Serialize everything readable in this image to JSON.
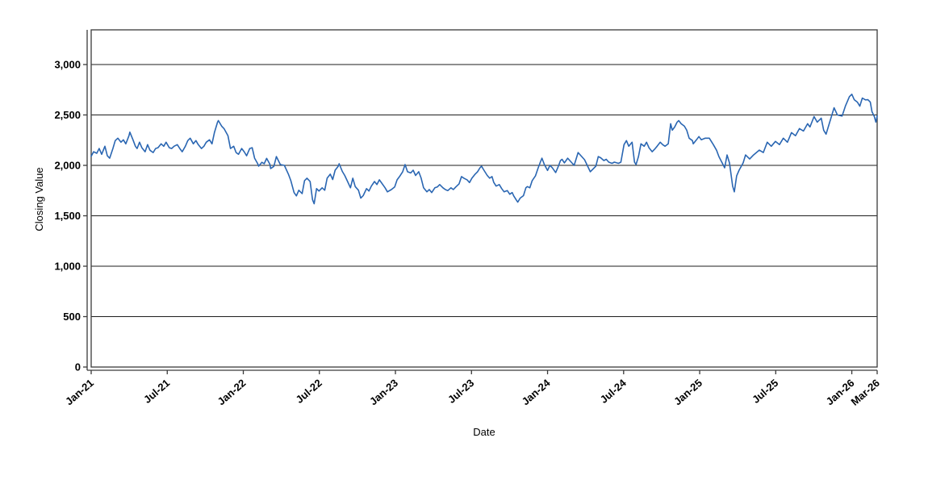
{
  "chart_data": {
    "type": "line",
    "title": "",
    "xlabel": "Date",
    "ylabel": "Closing Value",
    "x_unit": "months since Jan-2021",
    "xlim_months": [
      0,
      62
    ],
    "ylim": [
      0,
      3344
    ],
    "grid": true,
    "legend": "none",
    "colors": {
      "line": "#2a66b2",
      "axis": "#3a3a3a",
      "gridline": "#1e1e1e",
      "text": "#000000"
    },
    "y_ticks": [
      {
        "v": 0,
        "label": "0"
      },
      {
        "v": 500,
        "label": "500"
      },
      {
        "v": 1000,
        "label": "1,000"
      },
      {
        "v": 1500,
        "label": "1,500"
      },
      {
        "v": 2000,
        "label": "2,000"
      },
      {
        "v": 2500,
        "label": "2,500"
      },
      {
        "v": 3000,
        "label": "3,000"
      }
    ],
    "x_ticks": [
      {
        "m": 0,
        "label": "Jan-21"
      },
      {
        "m": 6,
        "label": "Jul-21"
      },
      {
        "m": 12,
        "label": "Jan-22"
      },
      {
        "m": 18,
        "label": "Jul-22"
      },
      {
        "m": 24,
        "label": "Jan-23"
      },
      {
        "m": 30,
        "label": "Jul-23"
      },
      {
        "m": 36,
        "label": "Jan-24"
      },
      {
        "m": 42,
        "label": "Jul-24"
      },
      {
        "m": 48,
        "label": "Jan-25"
      },
      {
        "m": 54,
        "label": "Jul-25"
      },
      {
        "m": 60,
        "label": "Jan-26"
      },
      {
        "m": 62,
        "label": "Mar-26"
      }
    ],
    "series": [
      {
        "name": "Closing Value",
        "points": [
          [
            0,
            2090
          ],
          [
            0.19,
            2135
          ],
          [
            0.44,
            2120
          ],
          [
            0.63,
            2167
          ],
          [
            0.83,
            2110
          ],
          [
            1.08,
            2190
          ],
          [
            1.27,
            2095
          ],
          [
            1.46,
            2071
          ],
          [
            1.71,
            2167
          ],
          [
            1.9,
            2246
          ],
          [
            2.1,
            2270
          ],
          [
            2.35,
            2230
          ],
          [
            2.54,
            2254
          ],
          [
            2.73,
            2214
          ],
          [
            2.98,
            2294
          ],
          [
            3.05,
            2330
          ],
          [
            3.3,
            2254
          ],
          [
            3.49,
            2190
          ],
          [
            3.62,
            2167
          ],
          [
            3.81,
            2230
          ],
          [
            4,
            2175
          ],
          [
            4.25,
            2135
          ],
          [
            4.45,
            2206
          ],
          [
            4.64,
            2150
          ],
          [
            4.89,
            2127
          ],
          [
            5.08,
            2167
          ],
          [
            5.27,
            2175
          ],
          [
            5.52,
            2214
          ],
          [
            5.72,
            2190
          ],
          [
            5.91,
            2230
          ],
          [
            6.16,
            2175
          ],
          [
            6.35,
            2167
          ],
          [
            6.54,
            2190
          ],
          [
            6.79,
            2206
          ],
          [
            6.99,
            2167
          ],
          [
            7.18,
            2135
          ],
          [
            7.43,
            2190
          ],
          [
            7.62,
            2246
          ],
          [
            7.81,
            2270
          ],
          [
            8.06,
            2214
          ],
          [
            8.26,
            2246
          ],
          [
            8.45,
            2206
          ],
          [
            8.7,
            2167
          ],
          [
            8.89,
            2190
          ],
          [
            9.08,
            2230
          ],
          [
            9.33,
            2254
          ],
          [
            9.53,
            2214
          ],
          [
            9.72,
            2325
          ],
          [
            9.97,
            2429
          ],
          [
            10.03,
            2444
          ],
          [
            10.29,
            2389
          ],
          [
            10.48,
            2365
          ],
          [
            10.79,
            2294
          ],
          [
            10.99,
            2167
          ],
          [
            11.24,
            2190
          ],
          [
            11.43,
            2127
          ],
          [
            11.62,
            2110
          ],
          [
            11.87,
            2167
          ],
          [
            12.07,
            2135
          ],
          [
            12.26,
            2095
          ],
          [
            12.51,
            2167
          ],
          [
            12.7,
            2175
          ],
          [
            12.89,
            2071
          ],
          [
            13.14,
            2016
          ],
          [
            13.21,
            1992
          ],
          [
            13.46,
            2030
          ],
          [
            13.65,
            2016
          ],
          [
            13.84,
            2070
          ],
          [
            14.1,
            2010
          ],
          [
            14.16,
            1968
          ],
          [
            14.41,
            1990
          ],
          [
            14.61,
            2087
          ],
          [
            14.92,
            2008
          ],
          [
            15.24,
            2000
          ],
          [
            15.56,
            1913
          ],
          [
            15.75,
            1849
          ],
          [
            16,
            1730
          ],
          [
            16.19,
            1698
          ],
          [
            16.38,
            1754
          ],
          [
            16.64,
            1720
          ],
          [
            16.83,
            1849
          ],
          [
            17.02,
            1873
          ],
          [
            17.27,
            1840
          ],
          [
            17.46,
            1659
          ],
          [
            17.59,
            1619
          ],
          [
            17.78,
            1770
          ],
          [
            17.97,
            1746
          ],
          [
            18.22,
            1778
          ],
          [
            18.42,
            1754
          ],
          [
            18.61,
            1873
          ],
          [
            18.86,
            1913
          ],
          [
            19.05,
            1860
          ],
          [
            19.24,
            1952
          ],
          [
            19.49,
            1992
          ],
          [
            19.56,
            2016
          ],
          [
            19.81,
            1940
          ],
          [
            20,
            1900
          ],
          [
            20.19,
            1849
          ],
          [
            20.45,
            1778
          ],
          [
            20.64,
            1873
          ],
          [
            20.83,
            1790
          ],
          [
            21.08,
            1754
          ],
          [
            21.27,
            1675
          ],
          [
            21.46,
            1700
          ],
          [
            21.72,
            1770
          ],
          [
            21.91,
            1746
          ],
          [
            22.1,
            1794
          ],
          [
            22.35,
            1840
          ],
          [
            22.54,
            1810
          ],
          [
            22.73,
            1857
          ],
          [
            23.18,
            1778
          ],
          [
            23.37,
            1738
          ],
          [
            23.68,
            1760
          ],
          [
            23.94,
            1786
          ],
          [
            24.13,
            1857
          ],
          [
            24.32,
            1889
          ],
          [
            24.57,
            1937
          ],
          [
            24.76,
            2008
          ],
          [
            24.95,
            1937
          ],
          [
            25.21,
            1925
          ],
          [
            25.4,
            1952
          ],
          [
            25.59,
            1900
          ],
          [
            25.84,
            1937
          ],
          [
            26.03,
            1873
          ],
          [
            26.22,
            1778
          ],
          [
            26.48,
            1738
          ],
          [
            26.67,
            1760
          ],
          [
            26.86,
            1730
          ],
          [
            27.11,
            1778
          ],
          [
            27.3,
            1786
          ],
          [
            27.49,
            1810
          ],
          [
            27.75,
            1778
          ],
          [
            27.94,
            1760
          ],
          [
            28.13,
            1750
          ],
          [
            28.38,
            1778
          ],
          [
            28.57,
            1760
          ],
          [
            28.76,
            1786
          ],
          [
            29.02,
            1817
          ],
          [
            29.21,
            1889
          ],
          [
            29.4,
            1873
          ],
          [
            29.65,
            1857
          ],
          [
            29.84,
            1830
          ],
          [
            30.03,
            1873
          ],
          [
            30.29,
            1913
          ],
          [
            30.48,
            1937
          ],
          [
            30.67,
            1976
          ],
          [
            30.79,
            1992
          ],
          [
            30.98,
            1952
          ],
          [
            31.24,
            1900
          ],
          [
            31.43,
            1873
          ],
          [
            31.62,
            1889
          ],
          [
            31.75,
            1833
          ],
          [
            31.94,
            1794
          ],
          [
            32.19,
            1810
          ],
          [
            32.38,
            1770
          ],
          [
            32.57,
            1738
          ],
          [
            32.83,
            1750
          ],
          [
            33.02,
            1714
          ],
          [
            33.21,
            1730
          ],
          [
            33.33,
            1698
          ],
          [
            33.52,
            1659
          ],
          [
            33.65,
            1635
          ],
          [
            33.84,
            1675
          ],
          [
            34.1,
            1700
          ],
          [
            34.29,
            1778
          ],
          [
            34.41,
            1790
          ],
          [
            34.6,
            1778
          ],
          [
            34.79,
            1849
          ],
          [
            35.05,
            1897
          ],
          [
            35.24,
            1968
          ],
          [
            35.43,
            2032
          ],
          [
            35.56,
            2071
          ],
          [
            35.75,
            2008
          ],
          [
            36,
            1950
          ],
          [
            36.19,
            2000
          ],
          [
            36.38,
            1975
          ],
          [
            36.64,
            1929
          ],
          [
            36.83,
            1985
          ],
          [
            37.02,
            2048
          ],
          [
            37.14,
            2060
          ],
          [
            37.33,
            2025
          ],
          [
            37.46,
            2048
          ],
          [
            37.59,
            2071
          ],
          [
            38.1,
            2000
          ],
          [
            38.41,
            2127
          ],
          [
            38.92,
            2056
          ],
          [
            39.37,
            1937
          ],
          [
            39.81,
            1992
          ],
          [
            40,
            2087
          ],
          [
            40.19,
            2075
          ],
          [
            40.44,
            2048
          ],
          [
            40.63,
            2060
          ],
          [
            40.83,
            2032
          ],
          [
            41.08,
            2020
          ],
          [
            41.27,
            2032
          ],
          [
            41.59,
            2020
          ],
          [
            41.78,
            2032
          ],
          [
            42.03,
            2206
          ],
          [
            42.22,
            2246
          ],
          [
            42.41,
            2190
          ],
          [
            42.67,
            2230
          ],
          [
            42.86,
            2032
          ],
          [
            42.98,
            2008
          ],
          [
            43.17,
            2087
          ],
          [
            43.37,
            2214
          ],
          [
            43.62,
            2190
          ],
          [
            43.81,
            2230
          ],
          [
            44,
            2175
          ],
          [
            44.25,
            2135
          ],
          [
            44.44,
            2159
          ],
          [
            44.64,
            2190
          ],
          [
            44.89,
            2230
          ],
          [
            45.08,
            2206
          ],
          [
            45.27,
            2190
          ],
          [
            45.52,
            2214
          ],
          [
            45.71,
            2413
          ],
          [
            45.84,
            2349
          ],
          [
            46.03,
            2381
          ],
          [
            46.22,
            2429
          ],
          [
            46.35,
            2444
          ],
          [
            46.54,
            2413
          ],
          [
            46.79,
            2389
          ],
          [
            46.98,
            2349
          ],
          [
            47.17,
            2270
          ],
          [
            47.43,
            2246
          ],
          [
            47.49,
            2214
          ],
          [
            47.75,
            2254
          ],
          [
            47.94,
            2286
          ],
          [
            48.13,
            2254
          ],
          [
            48.44,
            2270
          ],
          [
            48.76,
            2270
          ],
          [
            49.08,
            2206
          ],
          [
            49.33,
            2150
          ],
          [
            49.52,
            2087
          ],
          [
            49.84,
            2008
          ],
          [
            49.97,
            1976
          ],
          [
            50.16,
            2103
          ],
          [
            50.35,
            2024
          ],
          [
            50.6,
            1794
          ],
          [
            50.73,
            1738
          ],
          [
            50.92,
            1897
          ],
          [
            51.11,
            1952
          ],
          [
            51.43,
            2024
          ],
          [
            51.62,
            2103
          ],
          [
            51.94,
            2063
          ],
          [
            52.25,
            2103
          ],
          [
            52.7,
            2151
          ],
          [
            53.02,
            2127
          ],
          [
            53.33,
            2230
          ],
          [
            53.65,
            2190
          ],
          [
            53.97,
            2238
          ],
          [
            54.29,
            2206
          ],
          [
            54.6,
            2270
          ],
          [
            54.92,
            2230
          ],
          [
            55.24,
            2325
          ],
          [
            55.56,
            2294
          ],
          [
            55.87,
            2365
          ],
          [
            56.19,
            2341
          ],
          [
            56.51,
            2413
          ],
          [
            56.7,
            2381
          ],
          [
            57.02,
            2484
          ],
          [
            57.27,
            2429
          ],
          [
            57.59,
            2468
          ],
          [
            57.78,
            2349
          ],
          [
            57.97,
            2310
          ],
          [
            58.22,
            2413
          ],
          [
            58.41,
            2492
          ],
          [
            58.6,
            2571
          ],
          [
            58.86,
            2500
          ],
          [
            59.24,
            2490
          ],
          [
            59.49,
            2587
          ],
          [
            59.81,
            2682
          ],
          [
            60,
            2706
          ],
          [
            60.19,
            2651
          ],
          [
            60.44,
            2627
          ],
          [
            60.63,
            2587
          ],
          [
            60.83,
            2667
          ],
          [
            61.08,
            2650
          ],
          [
            61.27,
            2651
          ],
          [
            61.46,
            2627
          ],
          [
            61.59,
            2532
          ],
          [
            61.78,
            2484
          ],
          [
            61.9,
            2429
          ],
          [
            62,
            2492
          ]
        ]
      }
    ]
  }
}
